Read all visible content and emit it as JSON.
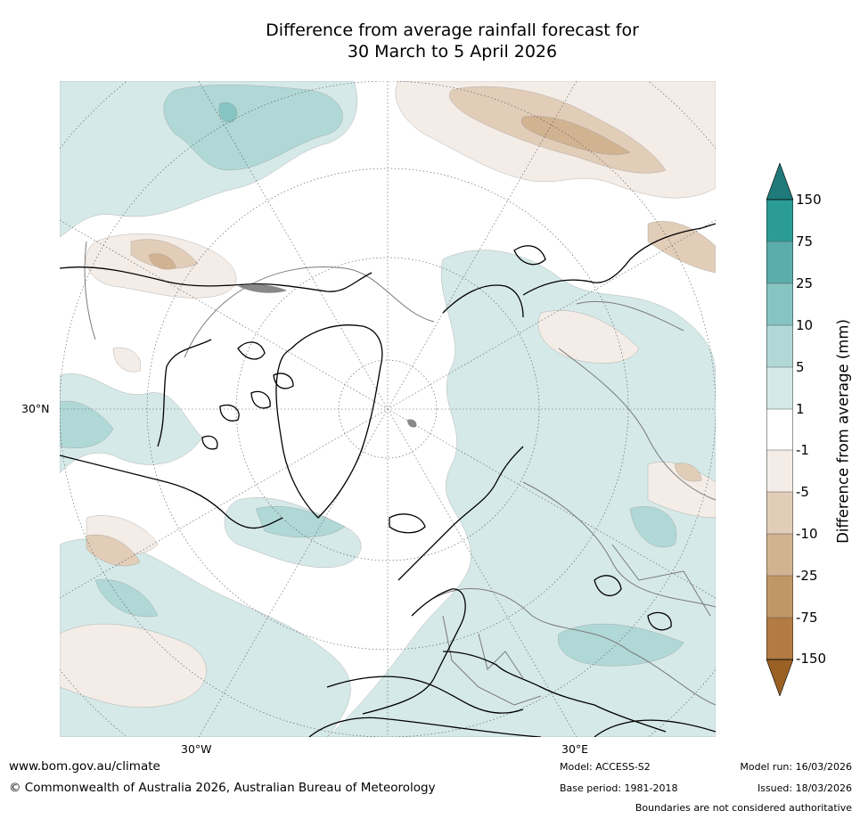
{
  "title": {
    "line1": "Difference from average rainfall forecast for",
    "line2": "30 March to 5 April 2026"
  },
  "map": {
    "description_label": "Northern hemisphere polar projection rainfall anomaly map",
    "lat_label": "30°N",
    "lon_labels": [
      "30°W",
      "30°E"
    ]
  },
  "colorbar": {
    "label": "Difference from average (mm)",
    "ticks": [
      "150",
      "75",
      "25",
      "10",
      "5",
      "1",
      "-1",
      "-5",
      "-10",
      "-25",
      "-75",
      "-150"
    ],
    "colors": {
      "extend_top": "#1f7a79",
      "b75_150": "#2b9b97",
      "b25_75": "#5aadab",
      "b10_25": "#86c4c1",
      "b5_10": "#b0d8d6",
      "b1_5": "#d5e9e8",
      "neutral": "#ffffff",
      "bm1_m5": "#f4ece6",
      "bm5_m10": "#e2cdb9",
      "bm10_m25": "#d1b392",
      "bm25_m75": "#c19666",
      "bm75_m150": "#b27b42",
      "extend_bottom": "#9a6024"
    }
  },
  "footer": {
    "website": "www.bom.gov.au/climate",
    "copyright": "© Commonwealth of Australia 2026, Australian Bureau of Meteorology",
    "model": "Model: ACCESS-S2",
    "base_period": "Base period: 1981-2018",
    "model_run": "Model run: 16/03/2026",
    "issued": "Issued: 18/03/2026",
    "disclaimer": "Boundaries are not considered authoritative"
  }
}
